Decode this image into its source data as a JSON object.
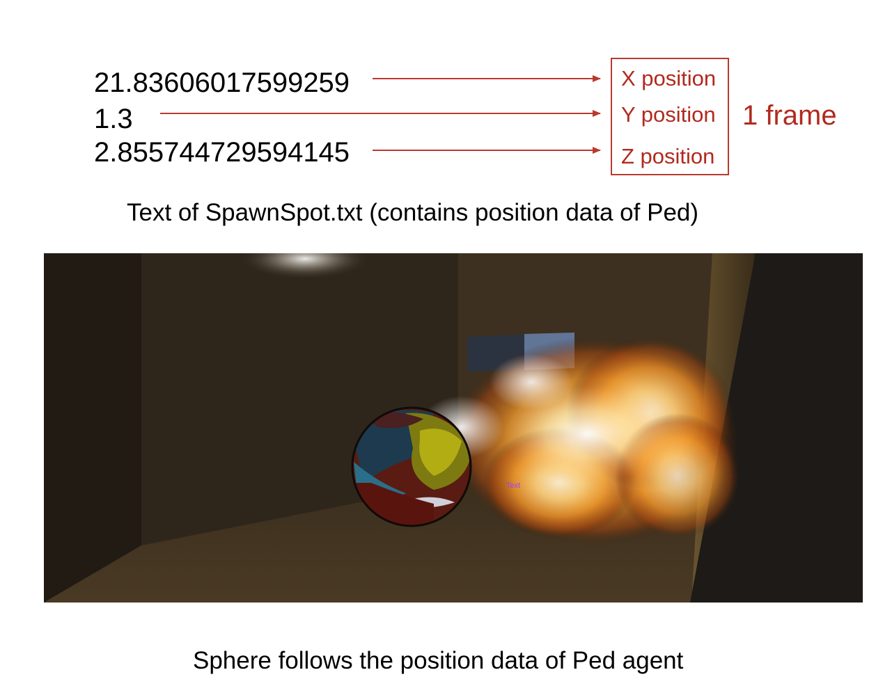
{
  "top": {
    "values": {
      "x": "21.83606017599259",
      "y": "1.3",
      "z": "2.855744729594145"
    },
    "labels": {
      "x": "X position",
      "y": "Y position",
      "z": "Z position"
    },
    "frame_label": "1 frame",
    "caption": "Text of SpawnSpot.txt (contains position data of Ped)"
  },
  "scene": {
    "overlay_text": "Text",
    "caption": "Sphere follows the position data of Ped agent"
  },
  "colors": {
    "arrow": "#b83a2e",
    "label": "#b12a1e"
  }
}
